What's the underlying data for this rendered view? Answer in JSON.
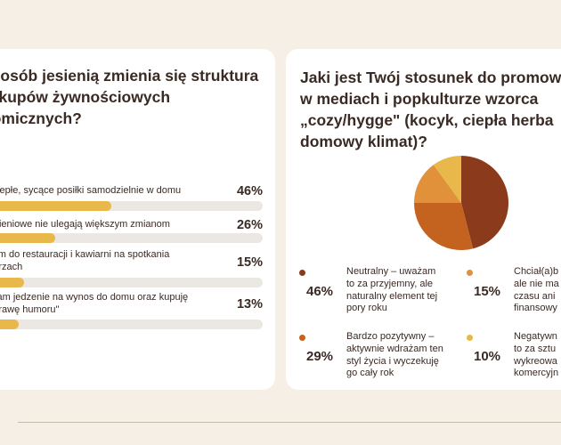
{
  "left_card": {
    "title_lines": [
      "sposób jesienią zmienia się struktura",
      "zakupów żywnościowych",
      "nomicznych?"
    ],
    "options": [
      {
        "lines": [
          "ję ciepłe, sycące posiłki samodzielnie w domu"
        ],
        "percent_label": "46%",
        "value": 0.46
      },
      {
        "lines": [
          "żywieniowe nie ulegają większym zmianom"
        ],
        "percent_label": "26%",
        "value": 0.26
      },
      {
        "lines": [
          "azam do restauracji i kawiarni na spotkania",
          "mętrzach"
        ],
        "percent_label": "15%",
        "value": 0.15
      },
      {
        "lines": [
          "awiam jedzenie na wynos do domu oraz kupuję",
          "poprawę humoru\""
        ],
        "percent_label": "13%",
        "value": 0.13
      }
    ],
    "bar_fill_color": "#e8b94a",
    "bar_track_color": "#ebe7e3"
  },
  "right_card": {
    "title_lines": [
      "Jaki jest Twój stosunek do promow",
      "w mediach i popkulturze wzorca",
      "„cozy/hygge\" (kocyk, ciepła herba",
      "domowy klimat)?"
    ],
    "chart_data": {
      "type": "pie",
      "values": [
        46,
        29,
        15,
        10
      ],
      "colors": [
        "#8b3a1c",
        "#c4621f",
        "#e0913a",
        "#e8b94a"
      ],
      "labels": [
        "Neutralny – uważam to za przyjemny, ale naturalny element tej pory roku",
        "Bardzo pozytywny – aktywnie wdrażam ten styl życia i wyczekuję go cały rok",
        "Chciał(a)b ale nie ma czasu ani finansowy",
        "Negatywn to za sztu wykreowa komercyjn"
      ]
    },
    "legend": [
      {
        "percent_label": "46%",
        "text": "Neutralny – uważam\nto za przyjemny, ale\nnaturalny element tej\npory roku",
        "color": "#8b3a1c"
      },
      {
        "percent_label": "15%",
        "text": "Chciał(a)b\nale nie ma\nczasu ani\nfinansowy",
        "color": "#e0913a"
      },
      {
        "percent_label": "29%",
        "text": "Bardzo pozytywny –\naktywnie wdrażam ten\nstyl życia i wyczekuję\ngo cały rok",
        "color": "#c4621f"
      },
      {
        "percent_label": "10%",
        "text": "Negatywn\nto za sztu\nwykreowa\nkomercyjn",
        "color": "#e8b94a"
      }
    ]
  }
}
